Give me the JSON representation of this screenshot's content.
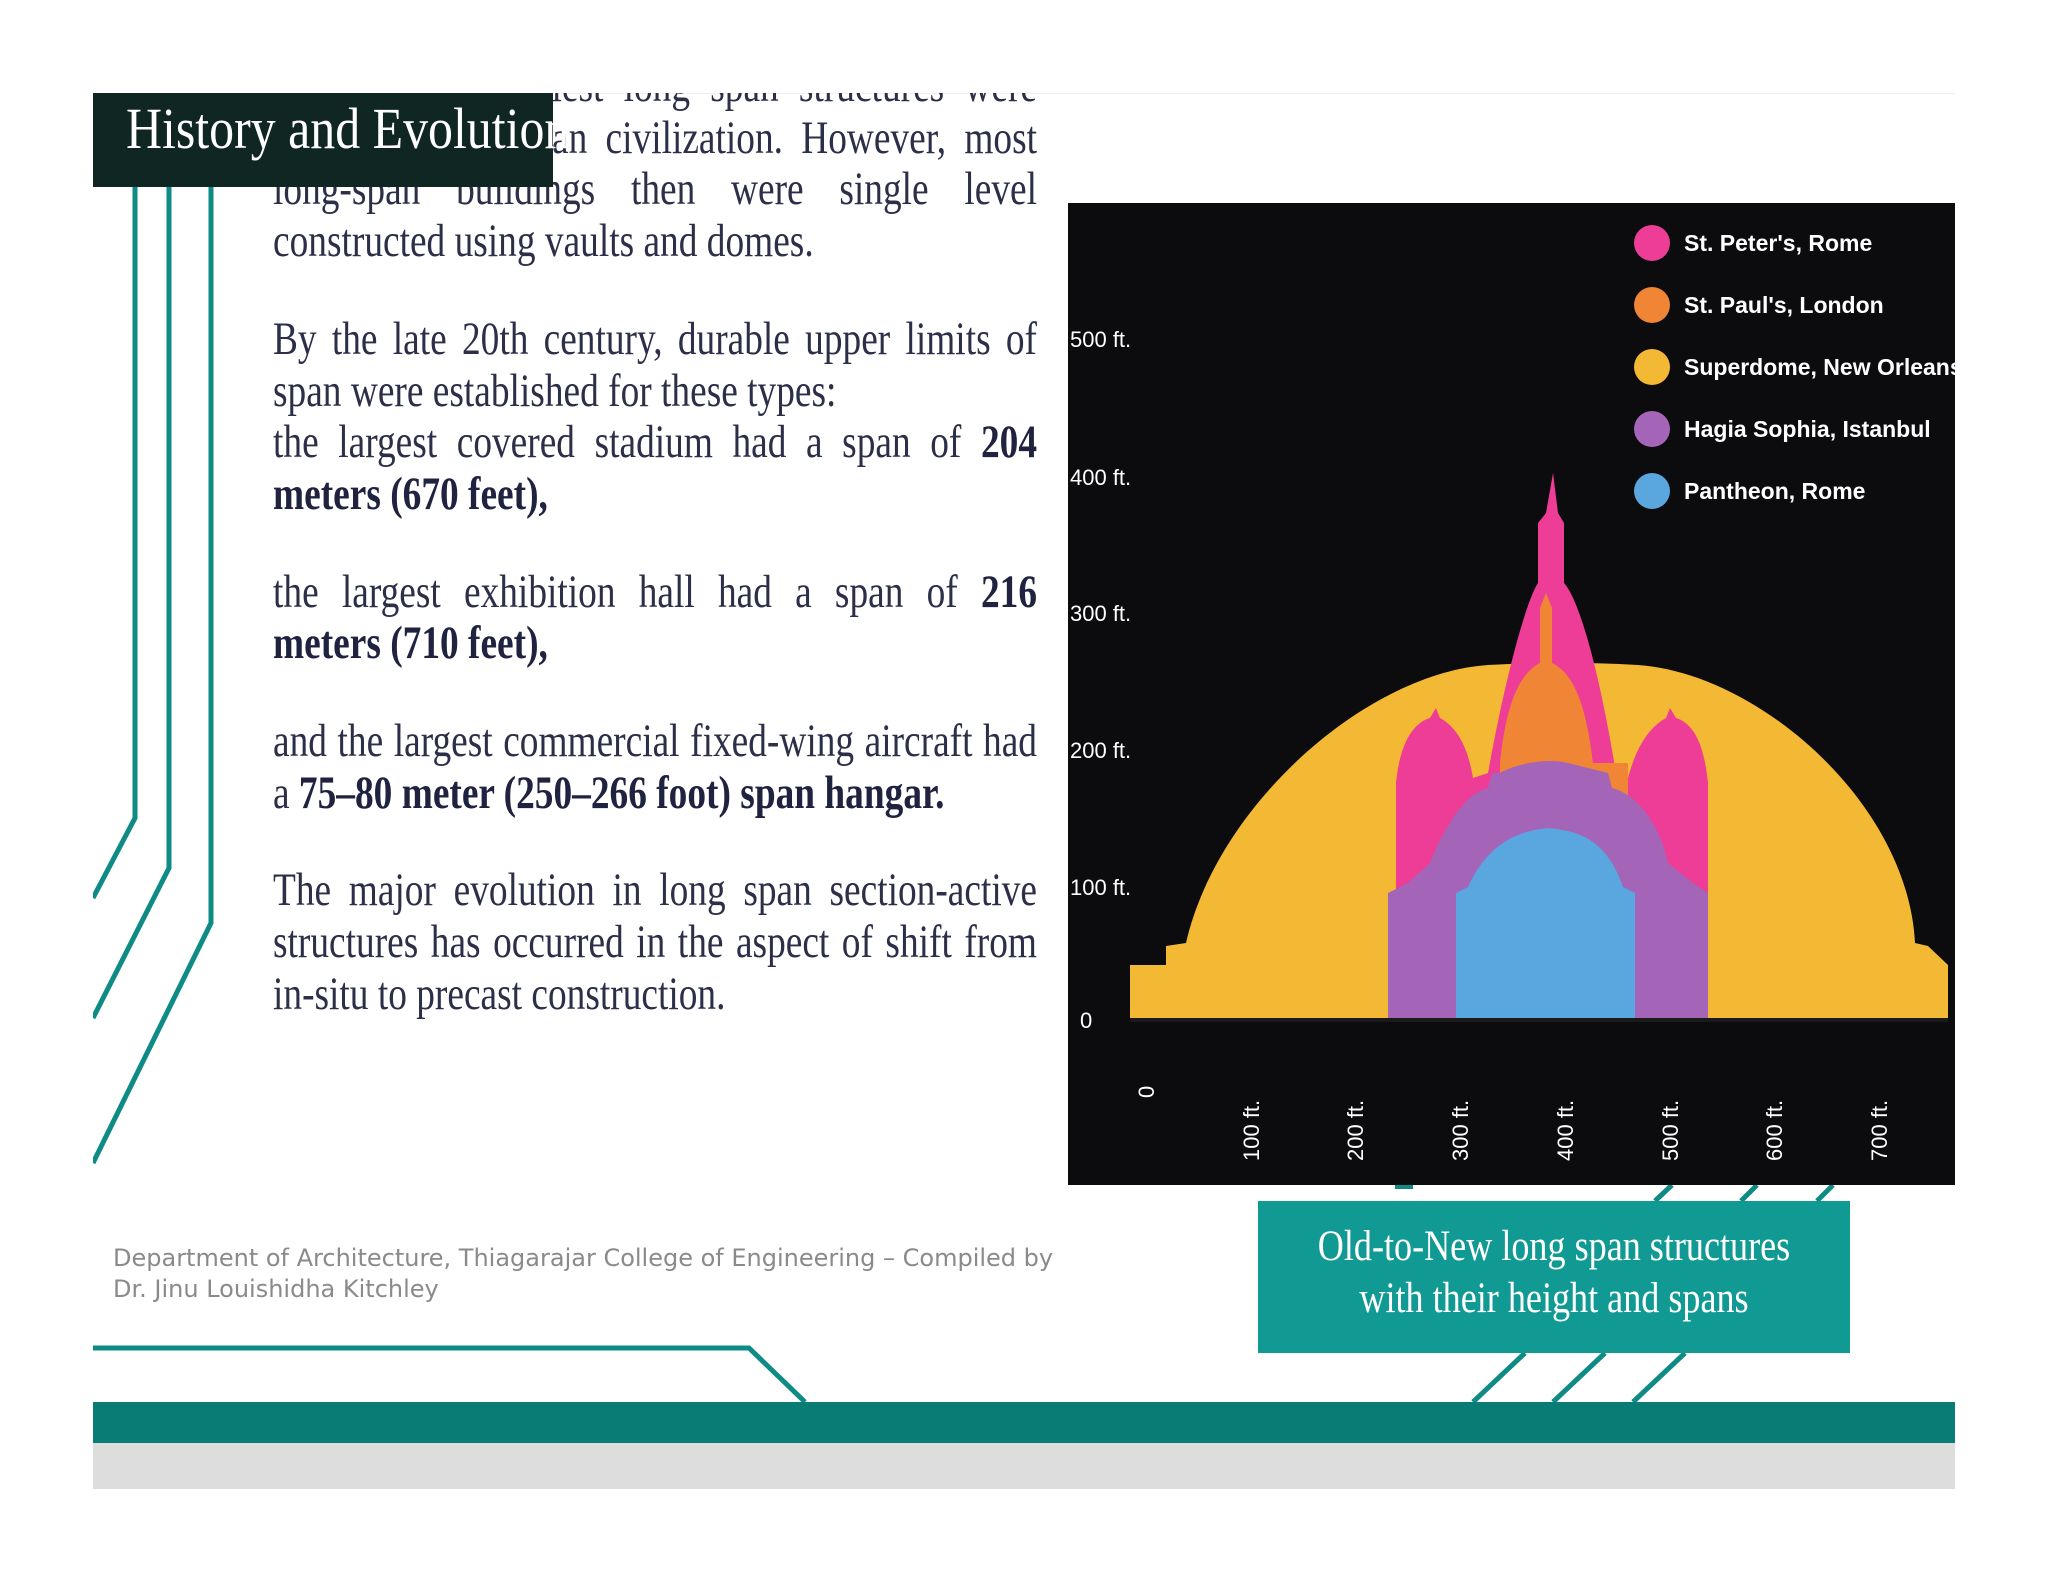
{
  "slide": {
    "title": "History and Evolution",
    "paragraphs": [
      {
        "segments": [
          {
            "text": "Some of the earliest long span structures were built by the Roman civilization. However, most long-span buildings then were single level constructed using vaults and domes.",
            "bold": false
          }
        ]
      },
      {
        "segments": [
          {
            "text": "By the late 20th century, durable upper limits of span were established for these types:",
            "bold": false
          }
        ]
      },
      {
        "segments": [
          {
            "text": "the largest covered stadium had a span of ",
            "bold": false
          },
          {
            "text": "204 meters (670 feet),",
            "bold": true
          }
        ]
      },
      {
        "segments": [
          {
            "text": "the largest exhibition hall had  a span of ",
            "bold": false
          },
          {
            "text": "216 meters (710 feet),",
            "bold": true
          }
        ]
      },
      {
        "segments": [
          {
            "text": "and the largest commercial fixed-wing aircraft had a ",
            "bold": false
          },
          {
            "text": "75–80 meter (250–266 foot) span hangar.",
            "bold": true
          }
        ]
      },
      {
        "segments": [
          {
            "text": "The major evolution in long span section-active structures has occurred in the aspect of shift from in-situ to precast construction.",
            "bold": false
          }
        ]
      }
    ],
    "caption": {
      "line1": "Old-to-New long span structures",
      "line2": "with their height and spans"
    },
    "footer": {
      "credit_line1": "Department of Architecture, Thiagarajar College of Engineering – Compiled by",
      "credit_line2": "Dr. Jinu Louishidha Kitchley"
    },
    "colors": {
      "teal": "#0f8b86",
      "title_bg": "#0f2622",
      "text": "#2c2f48"
    }
  },
  "figure": {
    "y_ticks": [
      "0",
      "100 ft.",
      "200 ft.",
      "300 ft.",
      "400 ft.",
      "500 ft."
    ],
    "x_ticks": [
      "0",
      "100 ft.",
      "200 ft.",
      "300 ft.",
      "400 ft.",
      "500 ft.",
      "600 ft.",
      "700 ft."
    ],
    "legend": [
      {
        "label": "St. Peter's, Rome",
        "color": "#ee3d96"
      },
      {
        "label": "St. Paul's, London",
        "color": "#f08535"
      },
      {
        "label": "Superdome, New Orleans",
        "color": "#f4b934"
      },
      {
        "label": "Hagia Sophia, Istanbul",
        "color": "#a465b8"
      },
      {
        "label": "Pantheon, Rome",
        "color": "#5aa6de"
      }
    ]
  }
}
